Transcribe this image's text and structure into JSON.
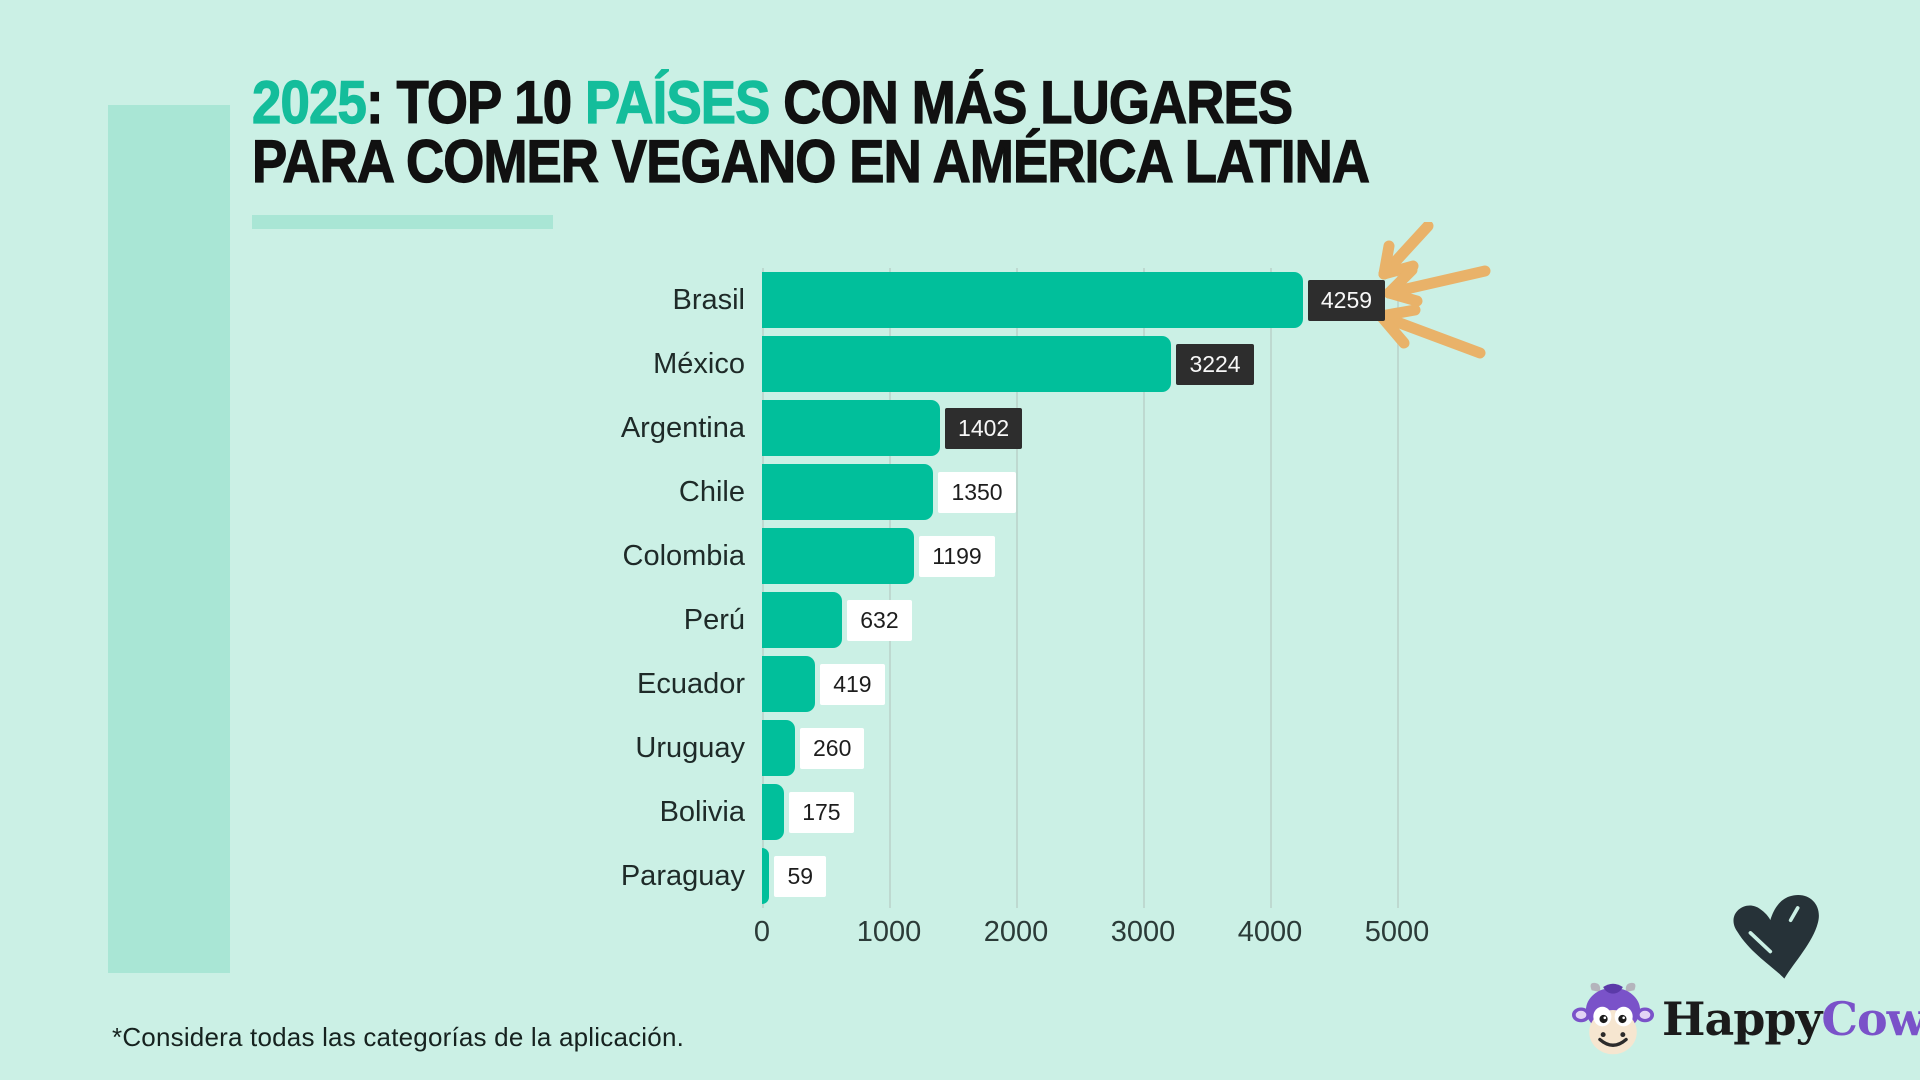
{
  "title": {
    "seg_year": "2025",
    "seg_colon": ": ",
    "seg_top10": "TOP 10 ",
    "seg_paises": "PAÍSES",
    "seg_rest": " CON MÁS LUGARES",
    "line2": "PARA COMER VEGANO EN AMÉRICA LATINA"
  },
  "chart_data": {
    "type": "bar",
    "orientation": "horizontal",
    "title": "2025: TOP 10 PAÍSES CON MÁS LUGARES PARA COMER VEGANO EN AMÉRICA LATINA",
    "categories": [
      "Brasil",
      "México",
      "Argentina",
      "Chile",
      "Colombia",
      "Perú",
      "Ecuador",
      "Uruguay",
      "Bolivia",
      "Paraguay"
    ],
    "values": [
      4259,
      3224,
      1402,
      1350,
      1199,
      632,
      419,
      260,
      175,
      59
    ],
    "value_label_styles": [
      "dark",
      "dark",
      "dark",
      "light",
      "light",
      "light",
      "light",
      "light",
      "light",
      "light"
    ],
    "xlabel": "",
    "ylabel": "",
    "xlim": [
      0,
      5000
    ],
    "xticks": [
      0,
      1000,
      2000,
      3000,
      4000,
      5000
    ],
    "grid": "vertical",
    "legend": "none",
    "bar_color": "#01bf9b"
  },
  "footnote": "*Considera todas las categorías de la aplicación.",
  "logo": {
    "happy": "Happy",
    "cow": "Cow"
  },
  "icons": {
    "arrows": "converging-arrows-icon",
    "heart": "heart-brush-icon",
    "cow": "cow-mascot-icon"
  },
  "colors": {
    "background": "#cbf0e5",
    "accent_soft": "#a9e6d5",
    "bar_teal": "#01bf9b",
    "title_accent": "#14bd9b",
    "dark_value_box": "#2d2d2d",
    "light_value_box": "#ffffff",
    "arrow_gold": "#e9b269",
    "gridline": "#bed9d0",
    "text_dark": "#111111",
    "logo_purple": "#7a52c9",
    "heart_dark": "#263238"
  }
}
